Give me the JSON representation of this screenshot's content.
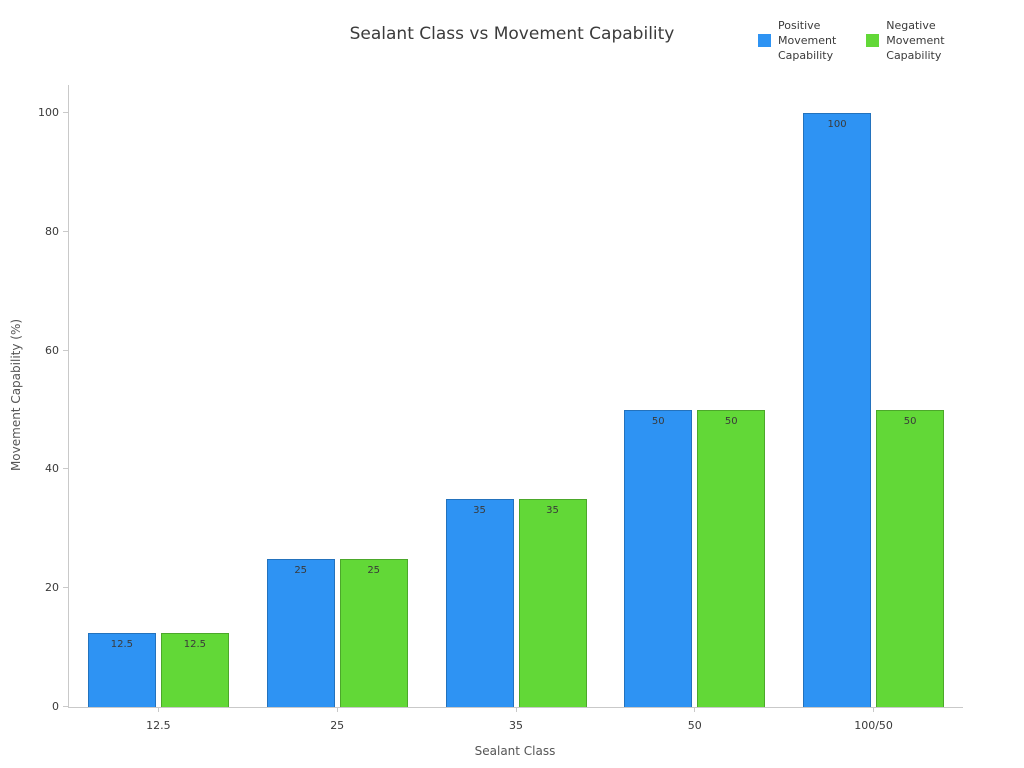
{
  "title": "Sealant Class vs Movement Capability",
  "axes": {
    "xlabel": "Sealant Class",
    "ylabel": "Movement Capability (%)"
  },
  "legend": [
    {
      "label": "Positive Movement Capability",
      "lines": [
        "Positive",
        "Movement",
        "Capability"
      ],
      "color": "#2e93f3",
      "key": "positive"
    },
    {
      "label": "Negative Movement Capability",
      "lines": [
        "Negative",
        "Movement",
        "Capability"
      ],
      "color": "#62d837",
      "key": "negative"
    }
  ],
  "chart_data": {
    "type": "bar",
    "title": "Sealant Class vs Movement Capability",
    "categories": [
      "12.5",
      "25",
      "35",
      "50",
      "100/50"
    ],
    "series": [
      {
        "name": "Positive Movement Capability",
        "key": "positive",
        "color": "#2e93f3",
        "values": [
          12.5,
          25,
          35,
          50,
          100
        ],
        "labels": [
          "12.5",
          "25",
          "35",
          "50",
          "100"
        ]
      },
      {
        "name": "Negative Movement Capability",
        "key": "negative",
        "color": "#62d837",
        "values": [
          12.5,
          25,
          35,
          50,
          50
        ],
        "labels": [
          "12.5",
          "25",
          "35",
          "50",
          "50"
        ]
      }
    ],
    "xlabel": "Sealant Class",
    "ylabel": "Movement Capability (%)",
    "ylim": [
      0,
      104.7
    ],
    "yticks": [
      0,
      20,
      40,
      60,
      80,
      100
    ],
    "grid": false,
    "bar_value_labels": true,
    "legend_position": "top-right",
    "background": "#ffffff"
  }
}
